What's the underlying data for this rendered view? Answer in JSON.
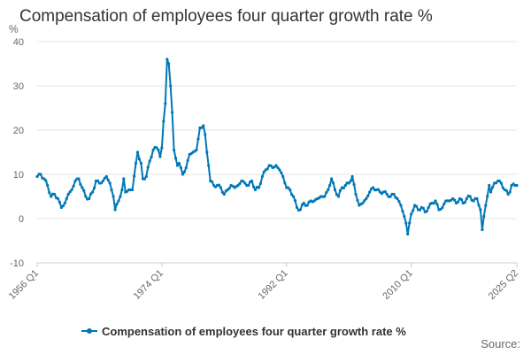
{
  "title": "Compensation of employees four quarter growth rate %",
  "source_label": "Source:",
  "colors": {
    "series": "#0077b6",
    "grid": "#e6e6e6",
    "axis_text": "#666666"
  },
  "chart_data": {
    "type": "line",
    "title": "Compensation of employees four quarter growth rate %",
    "ylabel": "%",
    "xlabel": "",
    "ylim": [
      -10,
      40
    ],
    "yticks": [
      -10,
      0,
      10,
      20,
      30,
      40
    ],
    "grid": true,
    "legend_position": "bottom",
    "x_tick_labels": [
      "1956 Q1",
      "1974 Q1",
      "1992 Q1",
      "2010 Q1",
      "2025 Q2"
    ],
    "series": [
      {
        "name": "Compensation of employees four quarter growth rate %",
        "x_start": "1956 Q1",
        "x_end": "2025 Q2",
        "frequency": "quarterly",
        "anchors": [
          [
            "1956 Q1",
            9.5
          ],
          [
            "1956 Q3",
            10.0
          ],
          [
            "1957 Q1",
            9.0
          ],
          [
            "1957 Q3",
            7.5
          ],
          [
            "1958 Q1",
            5.0
          ],
          [
            "1958 Q3",
            5.5
          ],
          [
            "1959 Q1",
            4.5
          ],
          [
            "1959 Q3",
            2.5
          ],
          [
            "1960 Q1",
            3.5
          ],
          [
            "1960 Q3",
            5.5
          ],
          [
            "1961 Q1",
            6.5
          ],
          [
            "1961 Q3",
            8.5
          ],
          [
            "1962 Q1",
            9.0
          ],
          [
            "1962 Q3",
            7.0
          ],
          [
            "1963 Q1",
            5.0
          ],
          [
            "1963 Q3",
            4.5
          ],
          [
            "1964 Q1",
            6.0
          ],
          [
            "1964 Q3",
            8.5
          ],
          [
            "1965 Q1",
            8.0
          ],
          [
            "1965 Q3",
            8.5
          ],
          [
            "1966 Q1",
            9.5
          ],
          [
            "1966 Q3",
            8.0
          ],
          [
            "1967 Q1",
            5.0
          ],
          [
            "1967 Q2",
            2.0
          ],
          [
            "1967 Q4",
            4.0
          ],
          [
            "1968 Q2",
            6.5
          ],
          [
            "1968 Q3",
            9.0
          ],
          [
            "1968 Q4",
            6.0
          ],
          [
            "1969 Q2",
            6.5
          ],
          [
            "1969 Q4",
            6.5
          ],
          [
            "1970 Q2",
            12.5
          ],
          [
            "1970 Q3",
            15.0
          ],
          [
            "1971 Q1",
            12.5
          ],
          [
            "1971 Q2",
            9.0
          ],
          [
            "1971 Q4",
            9.5
          ],
          [
            "1972 Q2",
            13.0
          ],
          [
            "1972 Q4",
            15.5
          ],
          [
            "1973 Q2",
            16.0
          ],
          [
            "1973 Q3",
            15.5
          ],
          [
            "1973 Q4",
            14.0
          ],
          [
            "1974 Q1",
            16.0
          ],
          [
            "1974 Q2",
            22.0
          ],
          [
            "1974 Q3",
            26.0
          ],
          [
            "1974 Q4",
            36.0
          ],
          [
            "1975 Q1",
            35.0
          ],
          [
            "1975 Q2",
            30.0
          ],
          [
            "1975 Q3",
            24.0
          ],
          [
            "1975 Q4",
            15.5
          ],
          [
            "1976 Q2",
            12.0
          ],
          [
            "1976 Q3",
            12.5
          ],
          [
            "1976 Q4",
            11.5
          ],
          [
            "1977 Q1",
            10.0
          ],
          [
            "1977 Q3",
            11.5
          ],
          [
            "1978 Q1",
            14.5
          ],
          [
            "1978 Q3",
            15.0
          ],
          [
            "1979 Q1",
            15.5
          ],
          [
            "1979 Q2",
            18.0
          ],
          [
            "1979 Q3",
            20.5
          ],
          [
            "1980 Q1",
            21.0
          ],
          [
            "1980 Q2",
            19.0
          ],
          [
            "1980 Q3",
            15.0
          ],
          [
            "1980 Q4",
            12.0
          ],
          [
            "1981 Q1",
            8.5
          ],
          [
            "1981 Q3",
            7.5
          ],
          [
            "1982 Q1",
            7.5
          ],
          [
            "1982 Q3",
            7.0
          ],
          [
            "1983 Q1",
            5.5
          ],
          [
            "1983 Q3",
            6.5
          ],
          [
            "1984 Q1",
            7.5
          ],
          [
            "1984 Q3",
            7.0
          ],
          [
            "1985 Q1",
            7.5
          ],
          [
            "1985 Q3",
            8.5
          ],
          [
            "1986 Q1",
            8.0
          ],
          [
            "1986 Q3",
            7.5
          ],
          [
            "1987 Q1",
            8.5
          ],
          [
            "1987 Q3",
            6.5
          ],
          [
            "1988 Q1",
            7.0
          ],
          [
            "1988 Q3",
            9.5
          ],
          [
            "1989 Q1",
            11.0
          ],
          [
            "1989 Q3",
            12.0
          ],
          [
            "1990 Q1",
            11.5
          ],
          [
            "1990 Q3",
            12.0
          ],
          [
            "1991 Q1",
            11.0
          ],
          [
            "1991 Q3",
            9.5
          ],
          [
            "1992 Q1",
            7.0
          ],
          [
            "1992 Q3",
            6.5
          ],
          [
            "1993 Q1",
            5.0
          ],
          [
            "1993 Q3",
            2.5
          ],
          [
            "1994 Q1",
            2.0
          ],
          [
            "1994 Q3",
            3.5
          ],
          [
            "1995 Q1",
            3.0
          ],
          [
            "1995 Q3",
            4.0
          ],
          [
            "1996 Q1",
            4.0
          ],
          [
            "1996 Q3",
            4.5
          ],
          [
            "1997 Q1",
            5.0
          ],
          [
            "1997 Q3",
            5.0
          ],
          [
            "1998 Q1",
            6.5
          ],
          [
            "1998 Q3",
            9.0
          ],
          [
            "1999 Q1",
            6.5
          ],
          [
            "1999 Q3",
            5.0
          ],
          [
            "2000 Q1",
            7.0
          ],
          [
            "2000 Q3",
            7.5
          ],
          [
            "2001 Q1",
            8.0
          ],
          [
            "2001 Q3",
            9.5
          ],
          [
            "2002 Q1",
            5.5
          ],
          [
            "2002 Q3",
            3.0
          ],
          [
            "2003 Q1",
            3.5
          ],
          [
            "2003 Q3",
            4.5
          ],
          [
            "2004 Q1",
            6.0
          ],
          [
            "2004 Q3",
            7.0
          ],
          [
            "2005 Q1",
            6.5
          ],
          [
            "2005 Q3",
            6.0
          ],
          [
            "2006 Q1",
            6.0
          ],
          [
            "2006 Q3",
            5.5
          ],
          [
            "2007 Q1",
            5.0
          ],
          [
            "2007 Q3",
            5.5
          ],
          [
            "2008 Q1",
            4.5
          ],
          [
            "2008 Q3",
            3.0
          ],
          [
            "2009 Q1",
            0.5
          ],
          [
            "2009 Q2",
            -1.0
          ],
          [
            "2009 Q3",
            -3.5
          ],
          [
            "2009 Q4",
            -1.0
          ],
          [
            "2010 Q1",
            1.0
          ],
          [
            "2010 Q3",
            3.0
          ],
          [
            "2011 Q1",
            2.0
          ],
          [
            "2011 Q3",
            2.5
          ],
          [
            "2012 Q1",
            1.5
          ],
          [
            "2012 Q3",
            2.5
          ],
          [
            "2013 Q1",
            3.5
          ],
          [
            "2013 Q3",
            4.0
          ],
          [
            "2014 Q1",
            2.0
          ],
          [
            "2014 Q3",
            2.5
          ],
          [
            "2015 Q1",
            4.0
          ],
          [
            "2015 Q3",
            4.0
          ],
          [
            "2016 Q1",
            4.5
          ],
          [
            "2016 Q3",
            3.5
          ],
          [
            "2017 Q1",
            4.5
          ],
          [
            "2017 Q3",
            3.5
          ],
          [
            "2018 Q1",
            4.5
          ],
          [
            "2018 Q3",
            5.0
          ],
          [
            "2019 Q1",
            4.0
          ],
          [
            "2019 Q3",
            4.5
          ],
          [
            "2020 Q1",
            2.0
          ],
          [
            "2020 Q2",
            -2.5
          ],
          [
            "2020 Q3",
            0.5
          ],
          [
            "2020 Q4",
            3.0
          ],
          [
            "2021 Q1",
            5.0
          ],
          [
            "2021 Q2",
            7.5
          ],
          [
            "2021 Q3",
            6.0
          ],
          [
            "2022 Q1",
            8.0
          ],
          [
            "2022 Q3",
            8.5
          ],
          [
            "2023 Q1",
            8.0
          ],
          [
            "2023 Q3",
            6.5
          ],
          [
            "2024 Q1",
            5.5
          ],
          [
            "2024 Q2",
            6.0
          ],
          [
            "2024 Q3",
            7.5
          ],
          [
            "2025 Q1",
            7.5
          ],
          [
            "2025 Q2",
            7.5
          ]
        ]
      }
    ]
  }
}
